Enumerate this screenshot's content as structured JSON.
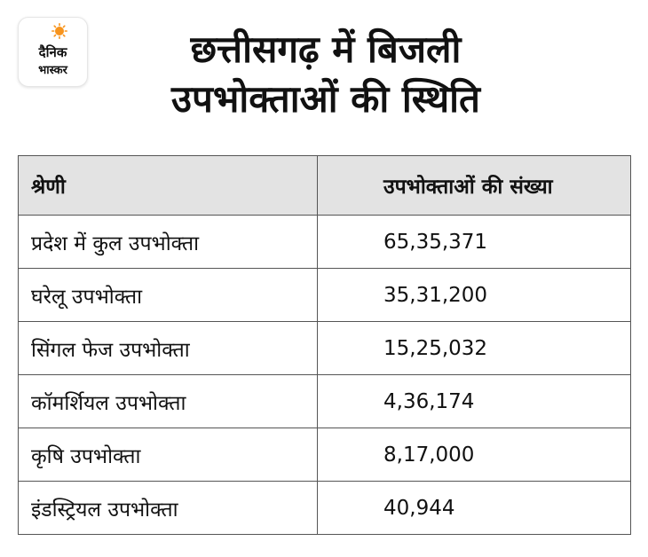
{
  "logo": {
    "line1": "दैनिक",
    "line2": "भास्कर",
    "sun_color": "#f7941d"
  },
  "title": {
    "line1": "छत्तीसगढ़ में बिजली",
    "line2": "उपभोक्ताओं की स्थिति"
  },
  "table": {
    "headers": [
      "श्रेणी",
      "उपभोक्ताओं की संख्या"
    ],
    "header_bg": "#e3e3e3",
    "rows": [
      {
        "category": "प्रदेश में कुल उपभोक्ता",
        "count": "65,35,371"
      },
      {
        "category": "घरेलू उपभोक्ता",
        "count": "35,31,200"
      },
      {
        "category": "सिंगल फेज उपभोक्ता",
        "count": "15,25,032"
      },
      {
        "category": "कॉमर्शियल उपभोक्ता",
        "count": "4,36,174"
      },
      {
        "category": "कृषि उपभोक्ता",
        "count": "8,17,000"
      },
      {
        "category": "इंडस्ट्रियल उपभोक्ता",
        "count": "40,944"
      }
    ]
  }
}
